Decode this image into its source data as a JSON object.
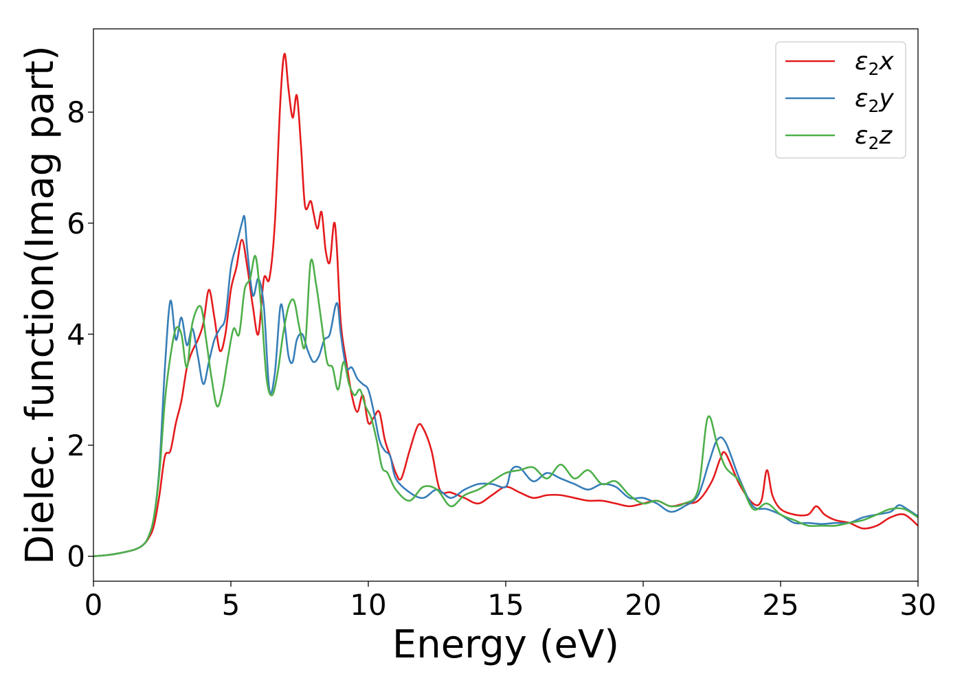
{
  "chart_data": {
    "type": "line",
    "title": "",
    "xlabel": "Energy (eV)",
    "ylabel": "Dielec. function(Imag part)",
    "xlim": [
      0,
      30
    ],
    "ylim": [
      -0.45,
      9.5
    ],
    "xticks": [
      0,
      5,
      10,
      15,
      20,
      25,
      30
    ],
    "yticks": [
      0,
      2,
      4,
      6,
      8
    ],
    "grid": false,
    "legend_position": "top-right",
    "series": [
      {
        "name": "ε₂x",
        "legend_base": "ε",
        "legend_sub": "2",
        "legend_tail": "x",
        "color": "#e41a1c",
        "x": [
          0,
          0.5,
          1.0,
          1.5,
          1.8,
          2.0,
          2.2,
          2.4,
          2.6,
          2.8,
          3.0,
          3.2,
          3.4,
          3.6,
          3.8,
          4.0,
          4.2,
          4.4,
          4.6,
          4.8,
          5.0,
          5.2,
          5.4,
          5.6,
          5.8,
          6.0,
          6.2,
          6.4,
          6.6,
          6.8,
          6.95,
          7.1,
          7.25,
          7.4,
          7.55,
          7.7,
          7.9,
          8.0,
          8.15,
          8.3,
          8.45,
          8.6,
          8.75,
          8.85,
          9.0,
          9.2,
          9.4,
          9.6,
          9.8,
          10.0,
          10.2,
          10.4,
          10.6,
          10.8,
          11.0,
          11.2,
          11.5,
          11.8,
          12.0,
          12.3,
          12.6,
          13.0,
          13.5,
          14.0,
          14.5,
          15.0,
          15.5,
          16.0,
          16.5,
          17.0,
          17.5,
          18.0,
          18.5,
          19.0,
          19.5,
          20.0,
          20.5,
          21.0,
          21.5,
          22.0,
          22.5,
          22.8,
          23.0,
          23.5,
          24.0,
          24.3,
          24.5,
          24.7,
          25.0,
          25.5,
          26.0,
          26.3,
          26.6,
          27.0,
          27.5,
          28.0,
          28.5,
          29.0,
          29.5,
          30.0
        ],
        "y": [
          0.0,
          0.02,
          0.06,
          0.12,
          0.2,
          0.32,
          0.55,
          1.1,
          1.8,
          1.9,
          2.4,
          2.8,
          3.4,
          3.7,
          3.9,
          4.2,
          4.8,
          4.3,
          3.7,
          4.0,
          4.8,
          5.2,
          5.7,
          5.2,
          4.5,
          4.0,
          5.0,
          5.0,
          6.0,
          8.2,
          9.05,
          8.4,
          7.9,
          8.3,
          7.4,
          6.3,
          6.4,
          6.2,
          5.9,
          6.2,
          5.5,
          5.3,
          6.0,
          5.6,
          4.2,
          3.5,
          2.9,
          2.6,
          2.9,
          2.4,
          2.5,
          2.6,
          2.1,
          1.8,
          1.5,
          1.4,
          1.9,
          2.35,
          2.3,
          1.9,
          1.2,
          1.15,
          1.05,
          0.95,
          1.1,
          1.25,
          1.15,
          1.05,
          1.1,
          1.1,
          1.05,
          1.0,
          1.0,
          0.95,
          0.9,
          0.95,
          1.0,
          0.9,
          0.95,
          1.0,
          1.35,
          1.75,
          1.85,
          1.3,
          0.95,
          1.0,
          1.55,
          1.1,
          0.85,
          0.75,
          0.75,
          0.9,
          0.75,
          0.65,
          0.6,
          0.5,
          0.55,
          0.7,
          0.75,
          0.55
        ]
      },
      {
        "name": "ε₂y",
        "legend_base": "ε",
        "legend_sub": "2",
        "legend_tail": "y",
        "color": "#377eb8",
        "x": [
          0,
          0.5,
          1.0,
          1.5,
          1.8,
          2.0,
          2.2,
          2.4,
          2.6,
          2.8,
          3.0,
          3.2,
          3.4,
          3.6,
          3.8,
          4.0,
          4.2,
          4.4,
          4.6,
          4.8,
          5.0,
          5.2,
          5.4,
          5.5,
          5.6,
          5.8,
          6.0,
          6.2,
          6.4,
          6.6,
          6.8,
          6.95,
          7.1,
          7.25,
          7.4,
          7.6,
          7.8,
          8.0,
          8.2,
          8.4,
          8.6,
          8.8,
          8.9,
          9.0,
          9.2,
          9.4,
          9.6,
          9.8,
          10.0,
          10.2,
          10.4,
          10.6,
          10.8,
          11.0,
          11.5,
          12.0,
          12.5,
          13.0,
          13.5,
          14.0,
          14.5,
          15.0,
          15.2,
          15.5,
          16.0,
          16.5,
          17.0,
          17.5,
          18.0,
          18.5,
          19.0,
          19.5,
          20.0,
          20.5,
          21.0,
          21.5,
          22.0,
          22.4,
          22.7,
          23.0,
          23.5,
          24.0,
          24.5,
          25.0,
          25.5,
          26.0,
          26.5,
          27.0,
          27.5,
          28.0,
          28.5,
          29.0,
          29.3,
          29.6,
          30.0
        ],
        "y": [
          0.0,
          0.02,
          0.06,
          0.12,
          0.2,
          0.35,
          0.7,
          1.6,
          3.4,
          4.6,
          3.9,
          4.3,
          3.8,
          4.1,
          3.6,
          3.1,
          3.5,
          3.9,
          4.1,
          4.3,
          5.2,
          5.6,
          6.0,
          6.1,
          5.5,
          4.7,
          5.0,
          4.5,
          3.0,
          3.3,
          4.5,
          4.2,
          3.6,
          3.5,
          3.9,
          4.0,
          3.7,
          3.5,
          3.6,
          3.9,
          4.0,
          4.5,
          4.5,
          4.0,
          3.4,
          3.4,
          3.2,
          3.1,
          3.0,
          2.6,
          2.1,
          1.9,
          1.8,
          1.4,
          1.15,
          1.05,
          1.2,
          1.05,
          1.2,
          1.3,
          1.3,
          1.25,
          1.55,
          1.6,
          1.35,
          1.5,
          1.4,
          1.3,
          1.2,
          1.3,
          1.25,
          1.05,
          1.05,
          0.95,
          0.8,
          0.9,
          1.1,
          1.7,
          2.1,
          2.05,
          1.4,
          0.9,
          0.85,
          0.75,
          0.6,
          0.6,
          0.58,
          0.6,
          0.6,
          0.7,
          0.75,
          0.8,
          0.92,
          0.85,
          0.72
        ]
      },
      {
        "name": "ε₂z",
        "legend_base": "ε",
        "legend_sub": "2",
        "legend_tail": "z",
        "color": "#4daf4a",
        "x": [
          0,
          0.5,
          1.0,
          1.5,
          1.8,
          2.0,
          2.2,
          2.4,
          2.6,
          2.8,
          3.0,
          3.2,
          3.4,
          3.6,
          3.9,
          4.1,
          4.3,
          4.5,
          4.7,
          4.9,
          5.1,
          5.3,
          5.5,
          5.7,
          5.9,
          6.1,
          6.3,
          6.5,
          6.7,
          6.9,
          7.1,
          7.3,
          7.5,
          7.7,
          7.9,
          8.1,
          8.3,
          8.5,
          8.7,
          8.9,
          9.1,
          9.3,
          9.5,
          9.7,
          9.9,
          10.1,
          10.3,
          10.5,
          10.7,
          11.0,
          11.5,
          12.0,
          12.5,
          13.0,
          13.5,
          14.0,
          14.5,
          15.0,
          15.5,
          16.0,
          16.5,
          17.0,
          17.5,
          18.0,
          18.5,
          19.0,
          19.5,
          20.0,
          20.5,
          21.0,
          21.5,
          22.0,
          22.35,
          22.7,
          23.0,
          23.5,
          24.0,
          24.5,
          25.0,
          25.5,
          26.0,
          26.5,
          27.0,
          27.5,
          28.0,
          28.5,
          29.0,
          29.5,
          30.0
        ],
        "y": [
          0.0,
          0.02,
          0.06,
          0.12,
          0.2,
          0.35,
          0.7,
          1.5,
          2.8,
          3.6,
          4.1,
          4.0,
          3.4,
          4.2,
          4.5,
          3.9,
          3.2,
          2.7,
          3.0,
          3.6,
          4.1,
          4.0,
          4.8,
          5.0,
          5.4,
          4.5,
          3.2,
          2.9,
          3.3,
          4.0,
          4.5,
          4.6,
          4.1,
          3.8,
          5.3,
          4.9,
          4.2,
          3.5,
          3.4,
          3.0,
          3.5,
          3.1,
          2.9,
          3.0,
          2.7,
          2.5,
          2.1,
          1.6,
          1.5,
          1.2,
          1.0,
          1.25,
          1.2,
          0.9,
          1.1,
          1.2,
          1.35,
          1.5,
          1.55,
          1.6,
          1.4,
          1.65,
          1.4,
          1.55,
          1.3,
          1.35,
          1.1,
          0.95,
          1.0,
          0.9,
          0.95,
          1.2,
          2.5,
          2.0,
          1.6,
          1.35,
          0.85,
          0.95,
          0.75,
          0.65,
          0.55,
          0.55,
          0.55,
          0.6,
          0.65,
          0.75,
          0.85,
          0.85,
          0.7
        ]
      }
    ]
  }
}
